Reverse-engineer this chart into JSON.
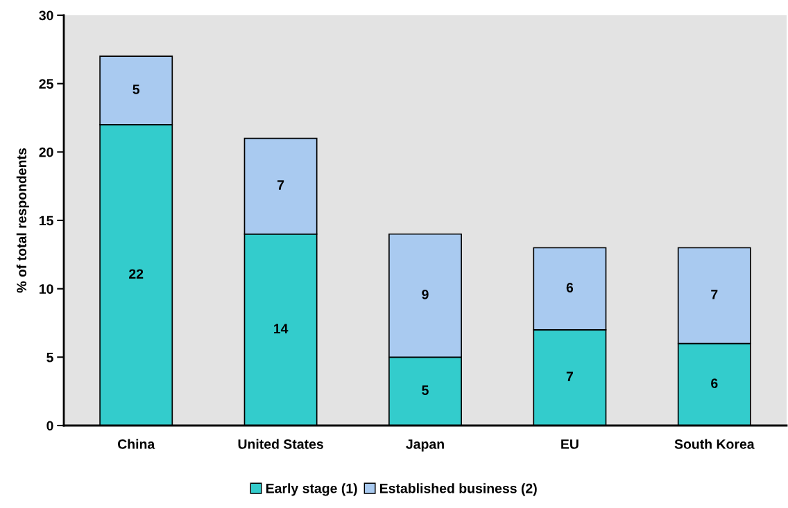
{
  "chart_data": {
    "type": "bar",
    "stacked": true,
    "ylabel": "% of total respondents",
    "categories": [
      "China",
      "United States",
      "Japan",
      "EU",
      "South Korea"
    ],
    "series": [
      {
        "name": "Early stage (1)",
        "color": "#33cccc",
        "values": [
          22,
          14,
          5,
          7,
          6
        ]
      },
      {
        "name": "Established business (2)",
        "color": "#a9caf0",
        "values": [
          5,
          7,
          9,
          6,
          7
        ]
      }
    ],
    "ylim": [
      0,
      30
    ],
    "yticks": [
      0,
      5,
      10,
      15,
      20,
      25,
      30
    ],
    "grid": false,
    "legend": "bottom",
    "data_labels": true
  }
}
